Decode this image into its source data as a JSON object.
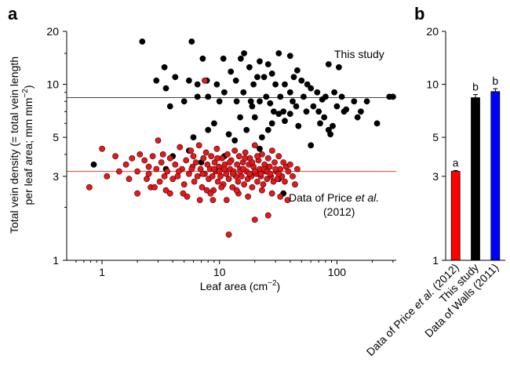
{
  "panels": {
    "a": {
      "letter": "a"
    },
    "b": {
      "letter": "b"
    }
  },
  "chart_data": [
    {
      "panel": "a",
      "type": "scatter",
      "xlabel": "Leaf area (cm",
      "xlabel_sup": "−2",
      "xlabel_end": ")",
      "ylabel_line1": "Total vein density (= total vein length",
      "ylabel_line2": "per leaf area; mm mm",
      "ylabel_sup": "−2",
      "ylabel_end": ")",
      "xscale": "log",
      "yscale": "log",
      "xlim": [
        0.5,
        320
      ],
      "ylim": [
        1,
        20
      ],
      "xticks": [
        1,
        10,
        100
      ],
      "xtick_labels": [
        "1",
        "10",
        "100"
      ],
      "yticks": [
        1,
        3,
        5,
        10,
        20
      ],
      "ytick_labels": [
        "1",
        "3",
        "5",
        "10",
        "20"
      ],
      "hlines": [
        {
          "y": 8.4,
          "color": "#444444"
        },
        {
          "y": 3.2,
          "color": "#e8413c"
        }
      ],
      "annotations": [
        {
          "text": "This study"
        },
        {
          "text_pre": "Data of Price ",
          "text_em": "et al.",
          "text_line2": "(2012)"
        }
      ],
      "series_style": [
        {
          "color": "#000000",
          "stroke": "#000000"
        },
        {
          "color": "#e3191c",
          "stroke": "#3a0000"
        }
      ],
      "series": [
        {
          "points": [
            [
              2.2,
              17.5
            ],
            [
              5.8,
              17.5
            ],
            [
              7.2,
              14
            ],
            [
              10.8,
              14
            ],
            [
              15.2,
              14
            ],
            [
              16.2,
              15
            ],
            [
              18,
              12.5
            ],
            [
              22,
              13.5
            ],
            [
              26,
              13
            ],
            [
              32,
              15
            ],
            [
              40,
              14.5
            ],
            [
              46,
              12
            ],
            [
              104,
              12.5
            ],
            [
              85,
              13
            ],
            [
              3.4,
              12.5
            ],
            [
              4.2,
              11
            ],
            [
              5.5,
              10.5
            ],
            [
              2.9,
              10.5
            ],
            [
              3.5,
              9.5
            ],
            [
              6.5,
              10
            ],
            [
              7.8,
              10.5
            ],
            [
              9.5,
              10
            ],
            [
              12.5,
              11.8
            ],
            [
              13.8,
              10.5
            ],
            [
              19.5,
              10
            ],
            [
              21,
              11
            ],
            [
              24,
              11
            ],
            [
              28,
              11.5
            ],
            [
              30,
              10
            ],
            [
              36,
              10
            ],
            [
              43,
              11
            ],
            [
              50,
              10.5
            ],
            [
              56,
              10
            ],
            [
              60,
              9.5
            ],
            [
              68,
              9
            ],
            [
              75,
              8.2
            ],
            [
              80,
              8.5
            ],
            [
              95,
              9
            ],
            [
              110,
              8.5
            ],
            [
              140,
              8
            ],
            [
              160,
              7
            ],
            [
              180,
              8
            ],
            [
              280,
              8.5
            ],
            [
              300,
              8.5
            ],
            [
              3.8,
              7.5
            ],
            [
              5,
              8
            ],
            [
              6.5,
              8.5
            ],
            [
              8,
              8.5
            ],
            [
              10,
              8
            ],
            [
              11,
              9
            ],
            [
              14,
              8
            ],
            [
              16,
              9
            ],
            [
              18.5,
              8
            ],
            [
              19,
              7.5
            ],
            [
              22,
              8
            ],
            [
              25,
              8.5
            ],
            [
              27,
              7.8
            ],
            [
              29,
              7
            ],
            [
              33,
              8.5
            ],
            [
              35,
              7
            ],
            [
              40,
              9
            ],
            [
              42,
              8
            ],
            [
              45,
              7.5
            ],
            [
              52,
              8.5
            ],
            [
              55,
              7
            ],
            [
              63,
              7.5
            ],
            [
              70,
              7
            ],
            [
              72,
              6
            ],
            [
              78,
              6.5
            ],
            [
              85,
              5.5
            ],
            [
              88,
              5.2
            ],
            [
              92,
              5.8
            ],
            [
              100,
              7.5
            ],
            [
              115,
              7
            ],
            [
              120,
              7.2
            ],
            [
              150,
              6.5
            ],
            [
              220,
              6
            ],
            [
              9,
              6
            ],
            [
              15,
              6.5
            ],
            [
              17,
              5.5
            ],
            [
              20,
              6.5
            ],
            [
              23,
              5
            ],
            [
              26,
              5.5
            ],
            [
              28,
              6
            ],
            [
              32,
              6.8
            ],
            [
              36,
              6.2
            ],
            [
              40,
              6.8
            ],
            [
              47,
              5.8
            ],
            [
              60,
              4.5
            ],
            [
              6,
              5
            ],
            [
              8,
              5.5
            ],
            [
              12,
              5.2
            ],
            [
              13.5,
              4.8
            ],
            [
              4,
              3.9
            ],
            [
              5.5,
              4.2
            ],
            [
              11,
              3.9
            ],
            [
              22,
              4.3
            ],
            [
              25,
              3.4
            ],
            [
              32,
              2.9
            ],
            [
              0.85,
              3.5
            ],
            [
              35,
              2.4
            ],
            [
              3.5,
              3.3
            ],
            [
              7,
              3.6
            ]
          ]
        },
        {
          "points": [
            [
              0.78,
              2.6
            ],
            [
              1.0,
              4.3
            ],
            [
              1.1,
              3.0
            ],
            [
              1.3,
              3.9
            ],
            [
              1.4,
              3.2
            ],
            [
              1.6,
              3.5
            ],
            [
              1.7,
              2.9
            ],
            [
              1.8,
              3.8
            ],
            [
              2.0,
              3.2
            ],
            [
              2.1,
              4.0
            ],
            [
              2.3,
              3.7
            ],
            [
              2.4,
              2.9
            ],
            [
              2.5,
              3.4
            ],
            [
              2.6,
              2.6
            ],
            [
              2.7,
              3.9
            ],
            [
              2.9,
              3.3
            ],
            [
              3.0,
              4.8
            ],
            [
              3.1,
              2.8
            ],
            [
              3.2,
              3.6
            ],
            [
              3.3,
              4.0
            ],
            [
              3.5,
              2.5
            ],
            [
              3.6,
              3.2
            ],
            [
              3.8,
              3.8
            ],
            [
              4.0,
              2.9
            ],
            [
              4.2,
              3.5
            ],
            [
              4.4,
              3.0
            ],
            [
              4.6,
              4.4
            ],
            [
              4.8,
              3.3
            ],
            [
              5.0,
              2.7
            ],
            [
              5.2,
              3.7
            ],
            [
              5.5,
              3.1
            ],
            [
              5.7,
              4.2
            ],
            [
              5.9,
              3.4
            ],
            [
              6.1,
              2.8
            ],
            [
              6.3,
              3.6
            ],
            [
              6.5,
              3.0
            ],
            [
              6.7,
              4.5
            ],
            [
              6.9,
              3.3
            ],
            [
              7.1,
              2.6
            ],
            [
              7.3,
              3.8
            ],
            [
              7.5,
              3.1
            ],
            [
              7.7,
              4.1
            ],
            [
              7.9,
              3.5
            ],
            [
              8.1,
              2.9
            ],
            [
              8.3,
              3.3
            ],
            [
              8.5,
              3.9
            ],
            [
              8.7,
              3.0
            ],
            [
              8.9,
              2.5
            ],
            [
              9.1,
              3.6
            ],
            [
              9.3,
              3.2
            ],
            [
              9.5,
              4.3
            ],
            [
              9.7,
              2.8
            ],
            [
              9.9,
              3.4
            ],
            [
              10.2,
              3.0
            ],
            [
              10.5,
              3.8
            ],
            [
              10.8,
              2.7
            ],
            [
              11.1,
              3.5
            ],
            [
              11.4,
              3.1
            ],
            [
              11.7,
              4.0
            ],
            [
              12.0,
              2.9
            ],
            [
              12.3,
              3.3
            ],
            [
              12.6,
              3.7
            ],
            [
              12.9,
              2.6
            ],
            [
              13.2,
              3.2
            ],
            [
              13.5,
              4.2
            ],
            [
              13.8,
              3.0
            ],
            [
              14.1,
              3.5
            ],
            [
              14.4,
              2.8
            ],
            [
              14.7,
              3.9
            ],
            [
              15.0,
              3.3
            ],
            [
              15.4,
              3.0
            ],
            [
              15.8,
              3.6
            ],
            [
              16.2,
              2.7
            ],
            [
              16.6,
              4.1
            ],
            [
              17.0,
              3.2
            ],
            [
              17.4,
              2.9
            ],
            [
              17.8,
              3.5
            ],
            [
              18.2,
              3.8
            ],
            [
              18.6,
              3.0
            ],
            [
              19.0,
              2.6
            ],
            [
              19.5,
              3.4
            ],
            [
              20.0,
              4.5
            ],
            [
              20.5,
              3.1
            ],
            [
              21.0,
              2.8
            ],
            [
              21.5,
              3.7
            ],
            [
              22.0,
              3.3
            ],
            [
              22.5,
              3.0
            ],
            [
              23.0,
              4.0
            ],
            [
              23.6,
              2.7
            ],
            [
              24.2,
              3.5
            ],
            [
              24.8,
              3.2
            ],
            [
              25.4,
              2.9
            ],
            [
              26.0,
              3.8
            ],
            [
              26.7,
              3.4
            ],
            [
              27.4,
              3.0
            ],
            [
              28.1,
              4.2
            ],
            [
              28.8,
              2.8
            ],
            [
              29.5,
              3.6
            ],
            [
              30.3,
              3.2
            ],
            [
              31.1,
              2.9
            ],
            [
              32.0,
              3.9
            ],
            [
              33.0,
              3.3
            ],
            [
              34.0,
              3.0
            ],
            [
              35.0,
              3.6
            ],
            [
              36.0,
              2.8
            ],
            [
              37.0,
              3.4
            ],
            [
              38.5,
              3.2
            ],
            [
              40.0,
              3.5
            ],
            [
              42.0,
              3.0
            ],
            [
              44.0,
              2.7
            ],
            [
              46.0,
              3.3
            ],
            [
              20.0,
              1.7
            ],
            [
              26.0,
              1.8
            ],
            [
              2.0,
              2.4
            ],
            [
              2.8,
              2.6
            ],
            [
              3.8,
              2.4
            ],
            [
              5.3,
              2.3
            ],
            [
              6.8,
              2.2
            ],
            [
              8.8,
              2.2
            ],
            [
              11.5,
              2.2
            ],
            [
              14.5,
              2.4
            ],
            [
              17.5,
              2.3
            ],
            [
              12.0,
              1.4
            ],
            [
              28.0,
              2.4
            ],
            [
              33.0,
              2.3
            ],
            [
              38.0,
              2.2
            ],
            [
              2.5,
              3.1
            ],
            [
              3.4,
              3.0
            ],
            [
              4.5,
              3.2
            ],
            [
              5.8,
              3.3
            ],
            [
              7.2,
              3.1
            ],
            [
              9.0,
              3.3
            ],
            [
              10.0,
              3.2
            ],
            [
              11.0,
              3.3
            ],
            [
              13.0,
              3.1
            ],
            [
              15.0,
              3.2
            ],
            [
              16.0,
              3.3
            ],
            [
              18.0,
              3.1
            ],
            [
              20.0,
              3.2
            ],
            [
              22.5,
              3.1
            ],
            [
              24.0,
              3.3
            ],
            [
              25.5,
              3.2
            ],
            [
              27.0,
              3.1
            ],
            [
              30.0,
              3.3
            ],
            [
              32.0,
              3.1
            ],
            [
              9.6,
              3.8
            ],
            [
              10.4,
              2.6
            ],
            [
              12.2,
              3.6
            ],
            [
              14.0,
              2.5
            ],
            [
              16.5,
              3.8
            ],
            [
              19.0,
              3.6
            ],
            [
              21.0,
              3.9
            ],
            [
              23.0,
              2.5
            ],
            [
              6.0,
              3.9
            ],
            [
              7.8,
              2.5
            ],
            [
              8.4,
              2.4
            ],
            [
              4.9,
              2.4
            ],
            [
              7.5,
              10.5
            ]
          ]
        }
      ]
    },
    {
      "panel": "b",
      "type": "bar",
      "yscale": "log",
      "ylim": [
        1,
        20
      ],
      "yticks": [
        1,
        3,
        5,
        10,
        20
      ],
      "ytick_labels": [
        "1",
        "3",
        "5",
        "10",
        "20"
      ],
      "categories": [
        {
          "pre": "Data of Price ",
          "em": "et al.",
          "post": " (2012)"
        },
        {
          "pre": "This study",
          "em": "",
          "post": ""
        },
        {
          "pre": "Data of Walls (2011)",
          "em": "",
          "post": ""
        }
      ],
      "values": [
        3.2,
        8.4,
        9.1
      ],
      "errors": [
        0.04,
        0.35,
        0.35
      ],
      "colors": [
        "#ff0000",
        "#000000",
        "#0000ff"
      ],
      "group_labels": [
        "a",
        "b",
        "b"
      ]
    }
  ]
}
